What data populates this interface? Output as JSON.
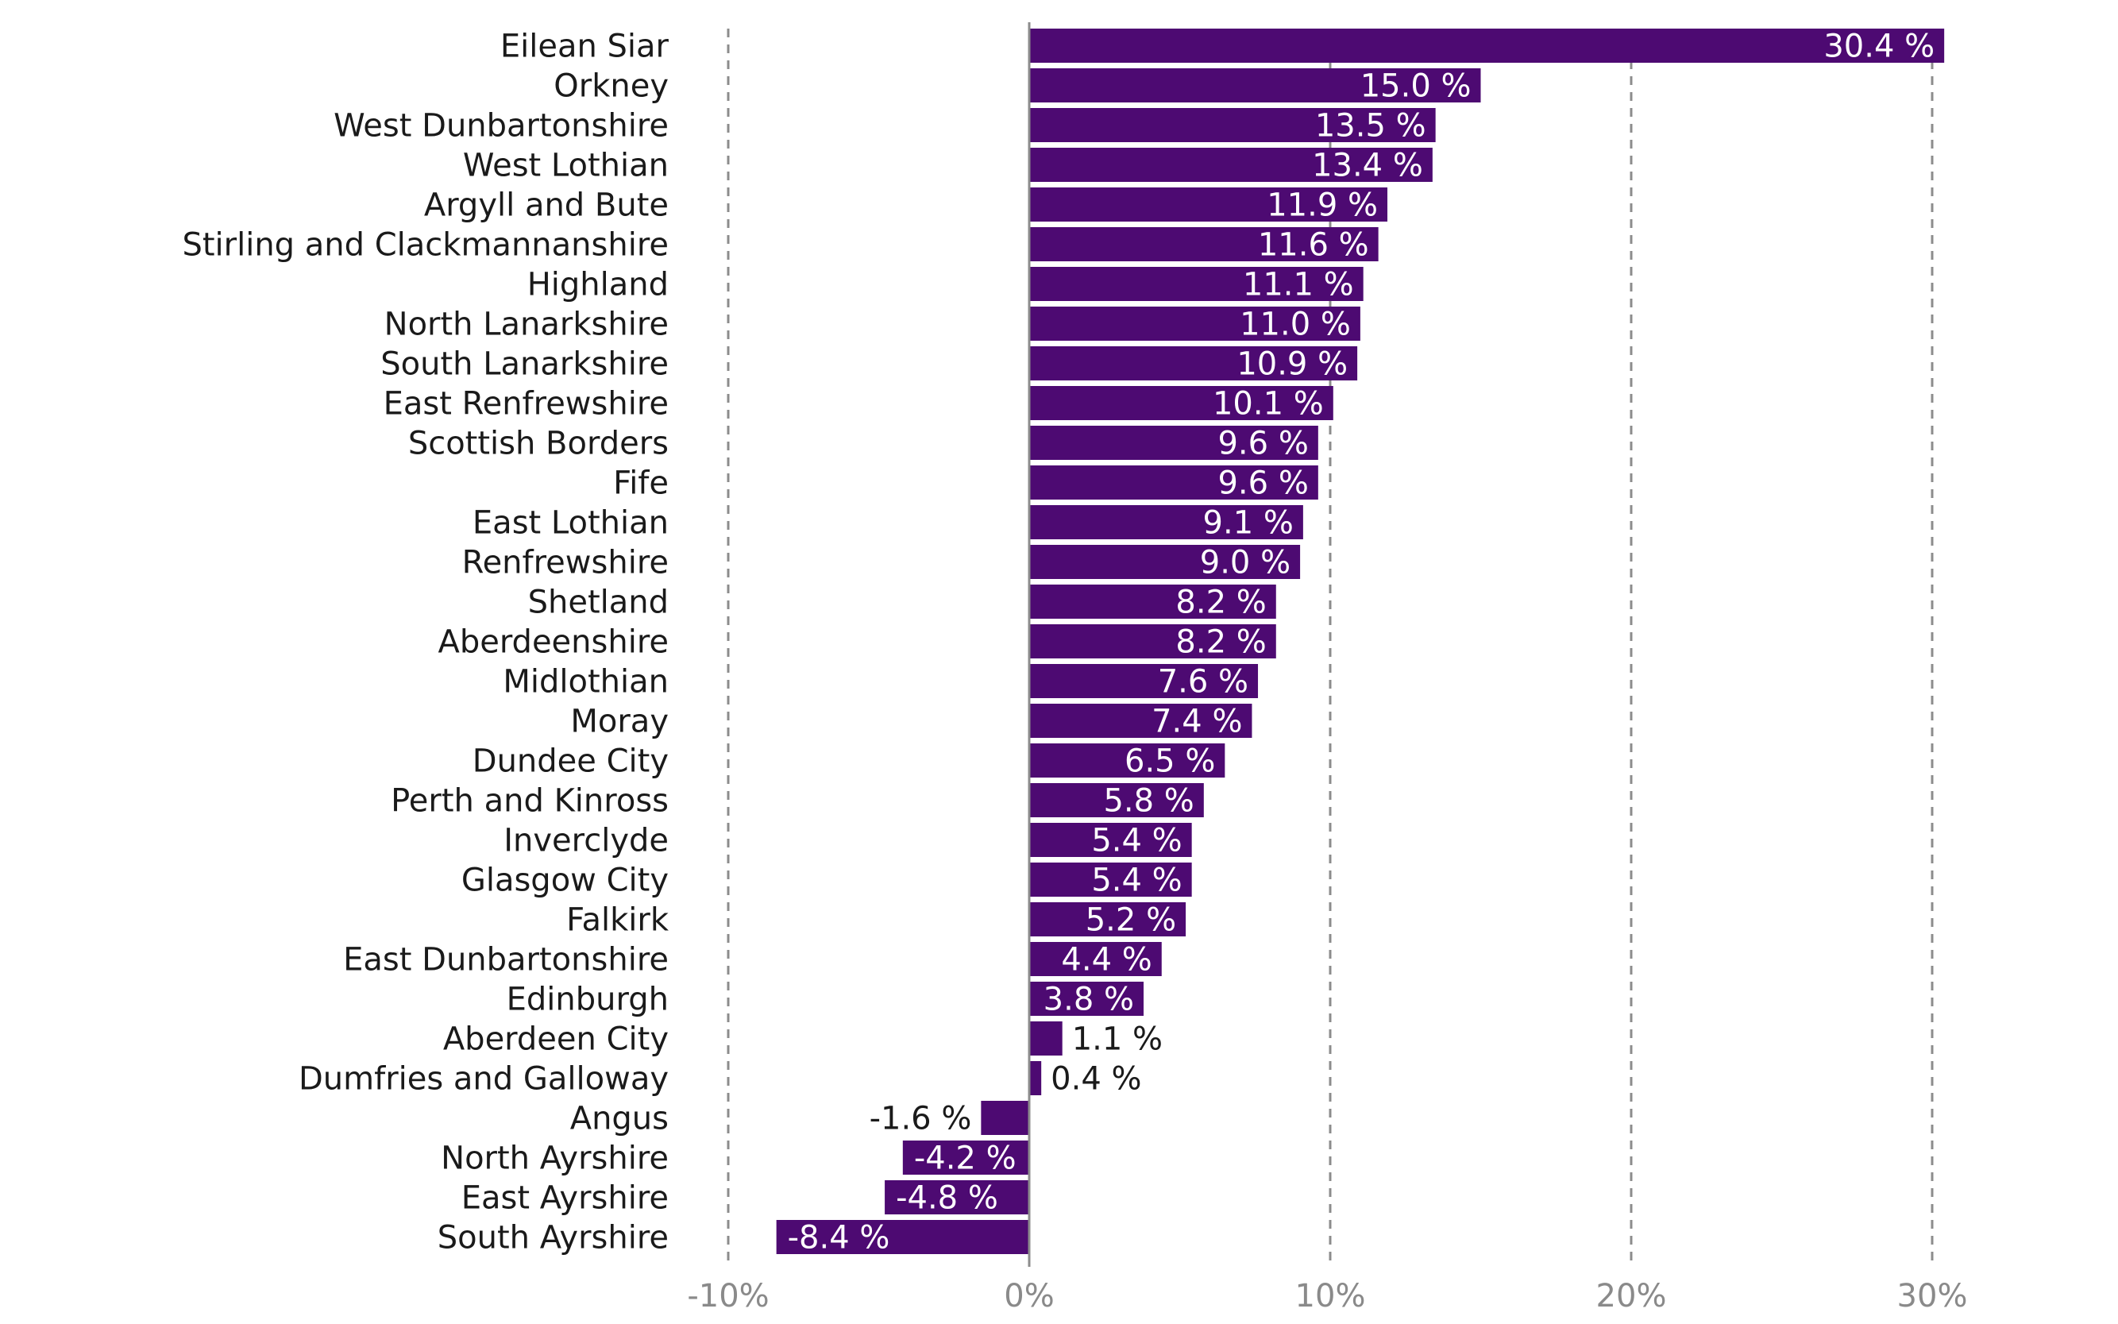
{
  "chart_data": {
    "type": "bar",
    "orientation": "horizontal",
    "categories": [
      "Eilean Siar",
      "Orkney",
      "West Dunbartonshire",
      "West Lothian",
      "Argyll and Bute",
      "Stirling and Clackmannanshire",
      "Highland",
      "North Lanarkshire",
      "South Lanarkshire",
      "East Renfrewshire",
      "Scottish Borders",
      "Fife",
      "East Lothian",
      "Renfrewshire",
      "Shetland",
      "Aberdeenshire",
      "Midlothian",
      "Moray",
      "Dundee City",
      "Perth and Kinross",
      "Inverclyde",
      "Glasgow City",
      "Falkirk",
      "East Dunbartonshire",
      "Edinburgh",
      "Aberdeen City",
      "Dumfries and Galloway",
      "Angus",
      "North Ayrshire",
      "East Ayrshire",
      "South Ayrshire"
    ],
    "values": [
      30.4,
      15.0,
      13.5,
      13.4,
      11.9,
      11.6,
      11.1,
      11.0,
      10.9,
      10.1,
      9.6,
      9.6,
      9.1,
      9.0,
      8.2,
      8.2,
      7.6,
      7.4,
      6.5,
      5.8,
      5.4,
      5.4,
      5.2,
      4.4,
      3.8,
      1.1,
      0.4,
      -1.6,
      -4.2,
      -4.8,
      -8.4
    ],
    "value_labels": [
      "30.4 %",
      "15.0 %",
      "13.5 %",
      "13.4 %",
      "11.9 %",
      "11.6 %",
      "11.1 %",
      "11.0 %",
      "10.9 %",
      "10.1 %",
      "9.6 %",
      "9.6 %",
      "9.1 %",
      "9.0 %",
      "8.2 %",
      "8.2 %",
      "7.6 %",
      "7.4 %",
      "6.5 %",
      "5.8 %",
      "5.4 %",
      "5.4 %",
      "5.2 %",
      "4.4 %",
      "3.8 %",
      "1.1 %",
      "0.4 %",
      "-1.6 %",
      "-4.2 %",
      "-4.8 %",
      "-8.4 %"
    ],
    "xlim": [
      -10,
      30
    ],
    "xticks": [
      -10,
      0,
      10,
      20,
      30
    ],
    "xtick_labels": [
      "-10%",
      "0%",
      "10%",
      "20%",
      "30%"
    ],
    "grid": "vertical dashed",
    "bar_color": "#4d0a72",
    "title": "",
    "xlabel": "",
    "ylabel": ""
  }
}
